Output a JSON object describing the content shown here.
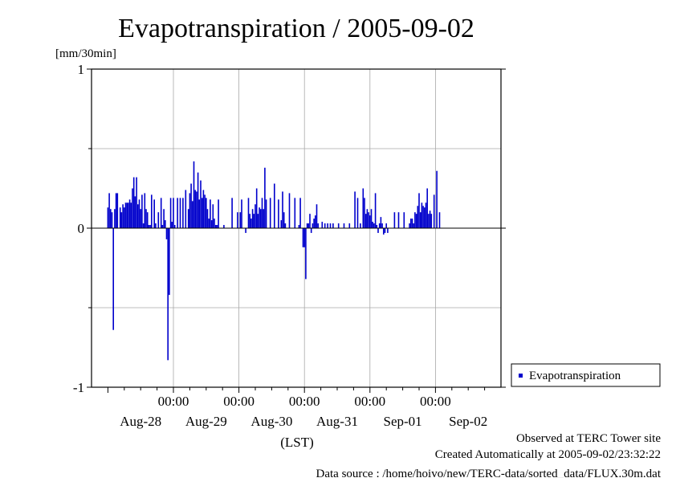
{
  "chart_data": {
    "type": "bar",
    "title": "Evapotranspiration / 2005-09-02",
    "ylabel": "[mm/30min]",
    "xlabel": "(LST)",
    "ylim": [
      -1,
      1
    ],
    "yticks": [
      "1",
      "0",
      "-1"
    ],
    "grid": true,
    "legend_position": "right",
    "series": [
      {
        "name": "Evapotranspiration",
        "color": "#0000cc",
        "x": [
          0.0,
          0.5,
          1.0,
          1.5,
          2.0,
          2.5,
          3.0,
          3.5,
          4.5,
          5.0,
          5.5,
          6.0,
          6.5,
          7.0,
          7.5,
          8.0,
          8.5,
          9.0,
          9.5,
          10.0,
          10.5,
          11.0,
          11.5,
          12.0,
          12.5,
          13.0,
          13.5,
          14.0,
          14.5,
          15.0,
          15.5,
          16.0,
          17.0,
          17.5,
          18.5,
          19.5,
          20.0,
          20.5,
          21.0,
          21.5,
          22.0,
          22.5,
          23.0,
          23.5,
          24.0,
          24.5,
          25.5,
          26.5,
          27.5,
          28.5,
          29.5,
          30.0,
          30.5,
          31.0,
          31.5,
          32.0,
          32.5,
          33.0,
          33.5,
          34.0,
          34.5,
          35.0,
          35.5,
          36.0,
          36.5,
          37.0,
          37.5,
          38.0,
          38.5,
          39.0,
          39.5,
          40.0,
          40.5,
          42.5,
          45.5,
          47.5,
          48.5,
          49.0,
          50.5,
          51.5,
          52.0,
          52.5,
          53.0,
          53.5,
          54.0,
          54.5,
          55.0,
          55.5,
          56.0,
          56.5,
          57.0,
          57.5,
          58.0,
          59.5,
          61.0,
          62.5,
          63.5,
          64.0,
          64.5,
          65.0,
          66.5,
          68.5,
          70.0,
          70.5,
          71.5,
          72.0,
          72.5,
          73.0,
          73.5,
          74.0,
          74.5,
          75.0,
          75.5,
          76.0,
          76.5,
          77.0,
          78.5,
          79.5,
          80.5,
          81.5,
          82.5,
          84.5,
          86.5,
          88.5,
          90.5,
          91.5,
          92.5,
          93.5,
          94.0,
          94.5,
          95.0,
          95.5,
          96.0,
          96.5,
          97.0,
          97.5,
          98.0,
          98.5,
          99.0,
          99.5,
          100.0,
          100.5,
          101.0,
          101.5,
          102.0,
          102.5,
          105.0,
          106.5,
          108.5,
          110.5,
          111.0,
          111.5,
          112.0,
          112.5,
          113.0,
          113.5,
          114.0,
          114.5,
          115.0,
          115.5,
          116.0,
          116.5,
          117.0,
          117.5,
          118.0,
          118.5,
          119.5,
          120.5,
          121.5
        ],
        "values": [
          0.13,
          0.22,
          0.12,
          0.1,
          -0.64,
          0.12,
          0.22,
          0.22,
          0.13,
          0.1,
          0.15,
          0.13,
          0.16,
          0.16,
          0.16,
          0.18,
          0.16,
          0.25,
          0.32,
          0.2,
          0.32,
          0.15,
          0.18,
          0.12,
          0.21,
          0.03,
          0.22,
          0.12,
          0.1,
          0.02,
          0.02,
          0.21,
          0.18,
          0.03,
          0.1,
          0.19,
          0.02,
          0.12,
          0.05,
          -0.07,
          -0.83,
          -0.42,
          0.19,
          0.04,
          0.19,
          0.02,
          0.19,
          0.19,
          0.19,
          0.24,
          0.12,
          0.22,
          0.28,
          0.17,
          0.42,
          0.24,
          0.23,
          0.35,
          0.18,
          0.3,
          0.19,
          0.24,
          0.21,
          0.19,
          0.12,
          0.06,
          0.18,
          0.05,
          0.15,
          0.06,
          0.02,
          0.02,
          0.18,
          0.02,
          0.19,
          0.1,
          0.1,
          0.18,
          -0.03,
          0.19,
          0.09,
          0.06,
          0.12,
          0.09,
          0.15,
          0.25,
          0.09,
          0.13,
          0.12,
          0.19,
          0.12,
          0.38,
          0.18,
          0.19,
          0.28,
          0.18,
          0.05,
          0.23,
          0.1,
          0.03,
          0.22,
          0.19,
          0.02,
          0.19,
          -0.12,
          -0.12,
          -0.32,
          0.03,
          0.03,
          0.09,
          -0.03,
          0.03,
          0.06,
          0.08,
          0.15,
          0.03,
          0.04,
          0.03,
          0.03,
          0.03,
          0.03,
          0.03,
          0.03,
          0.03,
          0.23,
          0.19,
          0.03,
          0.25,
          0.19,
          0.09,
          0.12,
          0.1,
          0.08,
          0.12,
          0.04,
          0.03,
          0.22,
          0.02,
          -0.03,
          0.03,
          0.07,
          0.03,
          -0.04,
          -0.03,
          0.03,
          -0.03,
          0.1,
          0.1,
          0.1,
          0.03,
          0.06,
          0.06,
          0.03,
          0.1,
          0.09,
          0.14,
          0.22,
          0.1,
          0.16,
          0.14,
          0.13,
          0.16,
          0.25,
          0.09,
          0.11,
          0.09,
          0.21,
          0.36,
          0.1
        ]
      }
    ],
    "x_time_ticks": [
      {
        "pos": 24,
        "label": "00:00"
      },
      {
        "pos": 48,
        "label": "00:00"
      },
      {
        "pos": 72,
        "label": "00:00"
      },
      {
        "pos": 96,
        "label": "00:00"
      },
      {
        "pos": 120,
        "label": "00:00"
      }
    ],
    "x_date_ticks": [
      {
        "pos": 12,
        "label": "Aug-28"
      },
      {
        "pos": 36,
        "label": "Aug-29"
      },
      {
        "pos": 60,
        "label": "Aug-30"
      },
      {
        "pos": 84,
        "label": "Aug-31"
      },
      {
        "pos": 108,
        "label": "Sep-01"
      },
      {
        "pos": 132,
        "label": "Sep-02"
      }
    ]
  },
  "footer": {
    "observed": "Observed at TERC Tower site",
    "created": "Created Automatically at 2005-09-02/23:32:22",
    "source": "Data source : /home/hoivo/new/TERC-data/sorted_data/FLUX.30m.dat"
  }
}
